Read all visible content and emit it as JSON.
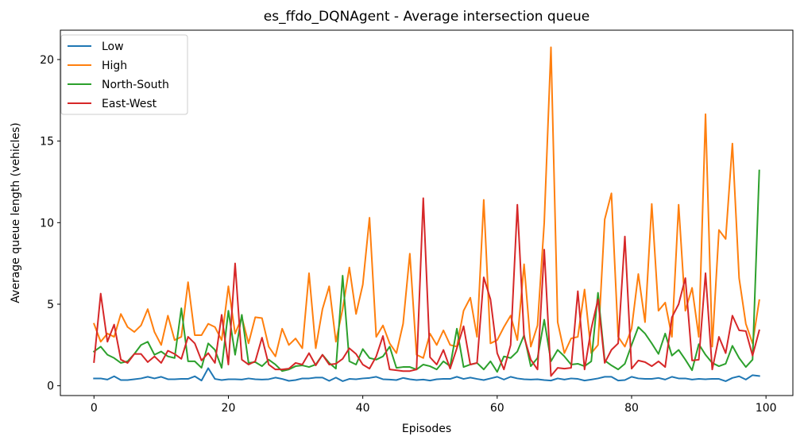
{
  "chart_data": {
    "type": "line",
    "title": "es_ffdo_DQNAgent - Average intersection queue",
    "xlabel": "Episodes",
    "ylabel": "Average queue length (vehicles)",
    "xlim": [
      -5,
      104
    ],
    "ylim": [
      -0.6,
      21.8
    ],
    "xticks": [
      0,
      20,
      40,
      60,
      80,
      100
    ],
    "yticks": [
      0,
      5,
      10,
      15,
      20
    ],
    "grid": false,
    "legend_position": "top-left",
    "x": [
      0,
      1,
      2,
      3,
      4,
      5,
      6,
      7,
      8,
      9,
      10,
      11,
      12,
      13,
      14,
      15,
      16,
      17,
      18,
      19,
      20,
      21,
      22,
      23,
      24,
      25,
      26,
      27,
      28,
      29,
      30,
      31,
      32,
      33,
      34,
      35,
      36,
      37,
      38,
      39,
      40,
      41,
      42,
      43,
      44,
      45,
      46,
      47,
      48,
      49,
      50,
      51,
      52,
      53,
      54,
      55,
      56,
      57,
      58,
      59,
      60,
      61,
      62,
      63,
      64,
      65,
      66,
      67,
      68,
      69,
      70,
      71,
      72,
      73,
      74,
      75,
      76,
      77,
      78,
      79,
      80,
      81,
      82,
      83,
      84,
      85,
      86,
      87,
      88,
      89,
      90,
      91,
      92,
      93,
      94,
      95,
      96,
      97,
      98,
      99
    ],
    "series": [
      {
        "name": "Low",
        "color": "#1f77b4",
        "values": [
          0.45,
          0.45,
          0.38,
          0.58,
          0.35,
          0.35,
          0.4,
          0.45,
          0.55,
          0.45,
          0.55,
          0.4,
          0.4,
          0.42,
          0.42,
          0.58,
          0.32,
          1.08,
          0.42,
          0.35,
          0.4,
          0.4,
          0.38,
          0.45,
          0.4,
          0.38,
          0.4,
          0.5,
          0.42,
          0.3,
          0.35,
          0.45,
          0.45,
          0.5,
          0.5,
          0.3,
          0.5,
          0.28,
          0.42,
          0.4,
          0.45,
          0.48,
          0.55,
          0.4,
          0.38,
          0.35,
          0.48,
          0.4,
          0.35,
          0.38,
          0.32,
          0.4,
          0.42,
          0.42,
          0.55,
          0.42,
          0.5,
          0.42,
          0.35,
          0.45,
          0.55,
          0.38,
          0.55,
          0.45,
          0.4,
          0.38,
          0.4,
          0.35,
          0.32,
          0.45,
          0.38,
          0.45,
          0.42,
          0.32,
          0.38,
          0.45,
          0.55,
          0.55,
          0.32,
          0.35,
          0.55,
          0.45,
          0.42,
          0.42,
          0.48,
          0.38,
          0.55,
          0.45,
          0.45,
          0.38,
          0.42,
          0.4,
          0.42,
          0.42,
          0.28,
          0.48,
          0.58,
          0.38,
          0.65,
          0.6
        ]
      },
      {
        "name": "High",
        "color": "#ff7f0e",
        "values": [
          3.8,
          2.7,
          3.2,
          3.0,
          4.4,
          3.6,
          3.3,
          3.7,
          4.7,
          3.3,
          2.5,
          4.3,
          2.8,
          3.0,
          6.35,
          3.1,
          3.1,
          3.8,
          3.6,
          2.8,
          6.1,
          3.2,
          4.2,
          2.6,
          4.2,
          4.15,
          2.4,
          1.8,
          3.5,
          2.5,
          2.9,
          2.3,
          6.9,
          2.3,
          4.7,
          6.1,
          2.7,
          4.7,
          7.25,
          4.4,
          6.2,
          10.3,
          3.0,
          3.7,
          2.6,
          2.0,
          3.8,
          8.1,
          1.9,
          1.7,
          3.2,
          2.5,
          3.4,
          2.5,
          2.4,
          4.6,
          5.4,
          3.0,
          11.4,
          2.6,
          2.8,
          3.6,
          4.3,
          2.8,
          7.45,
          2.4,
          3.7,
          10.0,
          20.75,
          3.9,
          2.0,
          2.9,
          3.0,
          5.9,
          2.0,
          2.5,
          10.2,
          11.8,
          3.0,
          2.4,
          3.5,
          6.85,
          3.9,
          11.15,
          4.6,
          5.1,
          3.0,
          11.1,
          4.6,
          6.0,
          3.0,
          16.65,
          2.4,
          9.55,
          9.0,
          14.85,
          6.6,
          3.8,
          2.6,
          5.25
        ]
      },
      {
        "name": "North-South",
        "color": "#2ca02c",
        "values": [
          2.1,
          2.4,
          1.9,
          1.7,
          1.4,
          1.5,
          1.95,
          2.5,
          2.7,
          1.9,
          2.1,
          1.8,
          1.7,
          4.75,
          1.5,
          1.5,
          1.1,
          2.6,
          2.2,
          1.1,
          4.6,
          1.9,
          4.35,
          1.4,
          1.45,
          1.2,
          1.6,
          1.3,
          0.9,
          1.0,
          1.2,
          1.25,
          1.15,
          1.3,
          1.9,
          1.4,
          1.05,
          6.75,
          1.5,
          1.3,
          2.25,
          1.7,
          1.6,
          1.8,
          2.4,
          1.1,
          1.15,
          1.15,
          1.0,
          1.3,
          1.2,
          1.0,
          1.5,
          1.2,
          3.5,
          1.15,
          1.3,
          1.4,
          1.0,
          1.5,
          0.85,
          1.8,
          1.7,
          2.1,
          3.1,
          1.2,
          1.7,
          4.05,
          1.5,
          2.2,
          1.8,
          1.3,
          1.35,
          1.2,
          1.5,
          5.7,
          1.55,
          1.25,
          1.0,
          1.35,
          2.5,
          3.6,
          3.2,
          2.6,
          1.95,
          3.2,
          1.85,
          2.2,
          1.6,
          0.95,
          2.55,
          1.9,
          1.4,
          1.2,
          1.35,
          2.45,
          1.7,
          1.15,
          1.6,
          13.2
        ]
      },
      {
        "name": "East-West",
        "color": "#d62728",
        "values": [
          1.45,
          5.65,
          2.7,
          3.75,
          1.6,
          1.4,
          1.95,
          1.95,
          1.45,
          1.8,
          1.4,
          2.15,
          1.95,
          1.65,
          3.0,
          2.6,
          1.55,
          2.0,
          1.4,
          4.35,
          1.3,
          7.5,
          1.6,
          1.3,
          1.5,
          2.95,
          1.3,
          1.0,
          1.0,
          1.05,
          1.4,
          1.3,
          2.0,
          1.25,
          1.9,
          1.3,
          1.35,
          1.65,
          2.3,
          1.95,
          1.3,
          1.05,
          1.8,
          3.05,
          1.0,
          0.95,
          0.9,
          0.9,
          1.0,
          11.5,
          1.75,
          1.3,
          2.2,
          1.05,
          2.3,
          3.65,
          1.3,
          1.4,
          6.65,
          5.3,
          2.0,
          1.0,
          2.5,
          11.1,
          3.0,
          1.6,
          1.0,
          8.35,
          0.6,
          1.1,
          1.05,
          1.1,
          5.8,
          1.0,
          3.5,
          5.3,
          1.4,
          2.2,
          2.6,
          9.15,
          1.05,
          1.55,
          1.45,
          1.2,
          1.5,
          1.15,
          4.2,
          5.0,
          6.6,
          1.55,
          1.6,
          6.9,
          1.0,
          3.0,
          2.0,
          4.3,
          3.4,
          3.35,
          1.85,
          3.4
        ]
      }
    ]
  }
}
